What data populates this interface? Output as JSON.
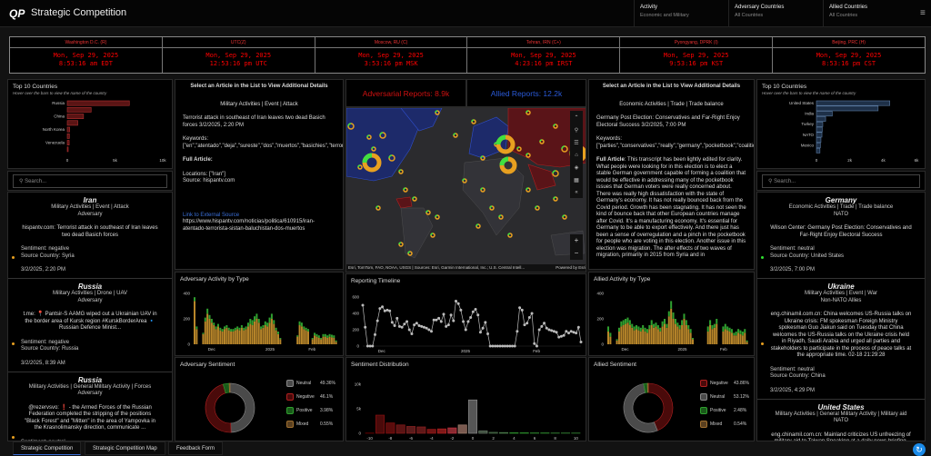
{
  "header": {
    "logo": "QP",
    "title": "Strategic Competition",
    "filters": [
      {
        "label": "Activity",
        "value": "Economic and Military"
      },
      {
        "label": "Adversary Countries",
        "value": "All Countries"
      },
      {
        "label": "Allied Countries",
        "value": "All Countries"
      }
    ],
    "menu_icon": "≡"
  },
  "clocks": [
    {
      "zone": "Washington D.C. (R)",
      "date": "Mon, Sep 29, 2025",
      "time": "8:53:16 am EDT"
    },
    {
      "zone": "UTC(Z)",
      "date": "Mon, Sep 29, 2025",
      "time": "12:53:16 pm UTC"
    },
    {
      "zone": "Moscow, RU (C)",
      "date": "Mon, Sep 29, 2025",
      "time": "3:53:16 pm MSK"
    },
    {
      "zone": "Tehran, IRN (C+)",
      "date": "Mon, Sep 29, 2025",
      "time": "4:23:16 pm IRST"
    },
    {
      "zone": "Pyongyang, DPRK (I)",
      "date": "Mon, Sep 29, 2025",
      "time": "9:53:16 pm KST"
    },
    {
      "zone": "Beijing, PRC (H)",
      "date": "Mon, Sep 29, 2025",
      "time": "8:53:16 pm CST"
    }
  ],
  "reports": {
    "adversarial": "Adversarial Reports: 8.9k",
    "allied": "Allied Reports: 12.2k"
  },
  "map": {
    "attribution": "Esri, TomTom, FAO, NOAA, USGS | Sources: Esri, Garmin International, Inc.; U.S. Central Intell...",
    "powered": "Powered by Esri",
    "zoom_in": "+",
    "zoom_out": "−"
  },
  "search_placeholder": "Search...",
  "colors": {
    "adversary": "#d01010",
    "allied": "#2050d0",
    "neutral": "#555555",
    "negative": "#6a0d0d",
    "positive": "#1a7a1a",
    "mixed": "#7a5a20",
    "bar_orange": "#b8862a",
    "bar_green": "#2fa02f"
  },
  "left_top10": {
    "title": "Top 10 Countries",
    "subtitle": "Hover over the bars to view the name of the country",
    "axis": [
      "0",
      "5k",
      "10k"
    ],
    "max": 10000,
    "bars": [
      {
        "label": "Russia",
        "value": 6500
      },
      {
        "label": "",
        "value": 2500
      },
      {
        "label": "China",
        "value": 1700
      },
      {
        "label": "",
        "value": 1100
      },
      {
        "label": "North Korea",
        "value": 250
      },
      {
        "label": "",
        "value": 220
      },
      {
        "label": "Venezuela",
        "value": 200
      },
      {
        "label": "",
        "value": 60
      }
    ]
  },
  "right_top10": {
    "title": "Top 10 Countries",
    "subtitle": "Hover over the bars to view the name of the country",
    "axis": [
      "0",
      "2k",
      "4k",
      "6k"
    ],
    "max": 6000,
    "bars": [
      {
        "label": "United States",
        "value": 4400
      },
      {
        "label": "",
        "value": 3700
      },
      {
        "label": "India",
        "value": 950
      },
      {
        "label": "",
        "value": 550
      },
      {
        "label": "Turkey",
        "value": 380
      },
      {
        "label": "",
        "value": 350
      },
      {
        "label": "NATO",
        "value": 330
      },
      {
        "label": "",
        "value": 270
      },
      {
        "label": "Mexico",
        "value": 240
      },
      {
        "label": "",
        "value": 210
      }
    ]
  },
  "left_list": [
    {
      "country": "Iran",
      "category": "Military Activities | Event | Attack",
      "group": "Adversary",
      "headline": "hispantv.com: Terrorist attack in southeast of Iran leaves two dead Basich forces",
      "sentiment": "Sentiment: negative",
      "source": "Source Country: Syria",
      "date": "3/2/2025, 2:20 PM",
      "dot": "#e8a020"
    },
    {
      "country": "Russia",
      "category": "Military Activities | Drone | UAV",
      "group": "Adversary",
      "headline": "t.me: 📍 Pantsir-S AAMG wiped out a Ukrainian UAV in the border area of Kursk region #KurskBorderArea 🔹 Russian Defence Minist...",
      "sentiment": "Sentiment: negative",
      "source": "Source Country: Russia",
      "date": "3/2/2025, 8:39 AM",
      "dot": "#e8a020"
    },
    {
      "country": "Russia",
      "category": "Military Activities | General Military Activity | Forces",
      "group": "Adversary",
      "headline": "@rezervsvo: ❗ - the Armed Forces of the Russian Federation completed the stripping of the positions \"Black Forest\" and \"Mitten\" in the area of Yampovka in the Krasnolimansky direction, communicate ...",
      "sentiment": "Sentiment: neutral",
      "source": "Source Country: Russia",
      "date": "",
      "dot": "#e8a020"
    }
  ],
  "right_list": [
    {
      "country": "Germany",
      "category": "Economic Activities | Trade | Trade balance",
      "group": "NATO",
      "headline": "Wilson Center: Germany Post Election: Conservatives and Far-Right Enjoy Electoral Success",
      "sentiment": "Sentiment: neutral",
      "source": "Source Country: United States",
      "date": "3/2/2025, 7:00 PM",
      "dot": "#30e030"
    },
    {
      "country": "Ukraine",
      "category": "Military Activities | Event | War",
      "group": "Non-NATO Allies",
      "headline": "eng.chinamil.com.cn: China welcomes US-Russia talks on Ukraine crisis: FM spokesman Foreign Ministry spokesman Guo Jiakun said on Tuesday that China welcomes the US-Russia talks on the Ukraine crisis held in Riyadh, Saudi Arabia and urged all parties and stakeholders to participate in the process of peace talks at the appropriate time. 02-18 21:29:28",
      "sentiment": "Sentiment: neutral",
      "source": "Source Country: China",
      "date": "3/2/2025, 4:29 PM",
      "dot": "#e8a020"
    },
    {
      "country": "United States",
      "category": "Military Activities | General Military Activity | Military aid",
      "group": "NATO",
      "headline": "eng.chinamil.com.cn: Mainland criticizes US unfreezing of military aid to Taiwan Speaking at a daily news briefing, Foreign Ministry spokesman Lin Jian said the US provision of...",
      "sentiment": "",
      "source": "",
      "date": "",
      "dot": "#e8a020"
    }
  ],
  "left_detail": {
    "heading": "Select an Article in the List to View Additional Details",
    "category": "Military Activities | Event | Attack",
    "title": "Terrorist attack in southeast of Iran leaves two dead Basich forces 3/2/2025, 2:20 PM",
    "keywords_label": "Keywords:",
    "keywords": "[\"en\",\"atentado\",\"deja\",\"sureste\",\"dos\",\"muertos\",\"basichies\",\"terrorista\",\"irán\"]",
    "full_label": "Full Article:",
    "full_text": "",
    "locations": "Locations: [\"Iran\"]",
    "source": "Source: hispantv.com",
    "link_label": "Link to External Source",
    "url": "https://www.hispantv.com/noticias/politica/610915/iran-atentado-terrorista-sistan-baluchistan-dos-muertos"
  },
  "right_detail": {
    "heading": "Select an Article in the List to View Additional Details",
    "category": "Economic Activities | Trade | Trade balance",
    "title": "Germany Post Election: Conservatives and Far-Right Enjoy Electoral Success 3/2/2025, 7:00 PM",
    "keywords_label": "Keywords:",
    "keywords": "[\"parties\",\"conservatives\",\"really\",\"germany\",\"pocketbook\",\"coalition\",\"success\",\"enjoy\",\"sense\",\"electoral\",\"party\",\"german\",\"election\",\"waves\",\"post\",\"schulz\",\"farright\"]",
    "full_label": "Full Article",
    "full_text": ": This transcript has been lightly edited for clarity. What people were looking for in this election is to elect a stable German government capable of forming a coalition that would be effective in addressing many of the pocketbook issues that German voters were really concerned about. There was really high dissatisfaction with the state of Germany's economy. It has not really bounced back from the Covid period. Growth has been stagnating. It has not seen the kind of bounce back that other European countries manage after Covid. It's a manufacturing economy. It's essential for Germany to be able to export effectively. And there just has been a sense of overregulation and a pinch in the pocketbook for people who are voting in this election. Another issue in this election was migration. The after effects of two waves of migration, primarily in 2015 from Syria and in"
  },
  "chart_data": [
    {
      "type": "bar",
      "id": "adv_activity",
      "title": "Adversary Activity by Type",
      "ylim": [
        0,
        400
      ],
      "yticks": [
        "0",
        "200",
        "400"
      ],
      "xticks": [
        "Dec",
        "2025",
        "Feb"
      ],
      "series": [
        {
          "name": "Military",
          "values": [
            340,
            120,
            0,
            0,
            80,
            180,
            240,
            200,
            170,
            150,
            120,
            140,
            110,
            100,
            120,
            130,
            110,
            100,
            100,
            110,
            120,
            110,
            130,
            110,
            120,
            140,
            160,
            150,
            180,
            200,
            170,
            120,
            130,
            150,
            140,
            170,
            200,
            160,
            110,
            80,
            40,
            0,
            0,
            0,
            0,
            0,
            0,
            0,
            60,
            150,
            140,
            120,
            110,
            100,
            0,
            40,
            70,
            60,
            50,
            40,
            60,
            60,
            50,
            60,
            55,
            50,
            20
          ]
        },
        {
          "name": "Economic",
          "values": [
            30,
            20,
            0,
            0,
            10,
            30,
            40,
            30,
            30,
            20,
            20,
            20,
            20,
            20,
            20,
            20,
            20,
            20,
            20,
            20,
            20,
            20,
            20,
            20,
            20,
            30,
            40,
            40,
            40,
            40,
            30,
            20,
            20,
            30,
            30,
            40,
            40,
            30,
            20,
            20,
            10,
            0,
            0,
            0,
            0,
            0,
            0,
            0,
            10,
            30,
            30,
            20,
            20,
            20,
            0,
            10,
            20,
            20,
            20,
            10,
            20,
            20,
            20,
            20,
            20,
            20,
            10
          ]
        }
      ]
    },
    {
      "type": "bar",
      "id": "all_activity",
      "title": "Allied Activity by Type",
      "ylim": [
        0,
        400
      ],
      "yticks": [
        "0",
        "200",
        "400"
      ],
      "xticks": [
        "Dec",
        "2025",
        "Feb"
      ],
      "series": [
        {
          "name": "Military",
          "values": [
            100,
            60,
            0,
            0,
            30,
            100,
            140,
            150,
            160,
            170,
            150,
            130,
            110,
            120,
            110,
            100,
            120,
            100,
            90,
            120,
            150,
            130,
            140,
            120,
            100,
            140,
            160,
            130,
            220,
            280,
            200,
            160,
            140,
            120,
            150,
            200,
            150,
            120,
            90,
            40,
            0,
            0,
            0,
            0,
            0,
            0,
            100,
            150,
            120,
            130,
            160,
            0,
            0,
            100,
            120,
            110,
            100,
            90,
            70,
            70,
            90,
            80,
            70,
            90,
            20
          ]
        },
        {
          "name": "Economic",
          "values": [
            40,
            30,
            0,
            0,
            10,
            30,
            40,
            40,
            40,
            40,
            40,
            30,
            30,
            30,
            30,
            30,
            30,
            30,
            30,
            30,
            40,
            30,
            30,
            30,
            30,
            40,
            40,
            30,
            40,
            60,
            50,
            40,
            30,
            30,
            40,
            40,
            40,
            30,
            30,
            10,
            0,
            0,
            0,
            0,
            0,
            0,
            40,
            40,
            30,
            30,
            40,
            0,
            0,
            40,
            40,
            30,
            30,
            30,
            20,
            30,
            30,
            30,
            30,
            30,
            10
          ]
        }
      ]
    },
    {
      "type": "line",
      "id": "timeline",
      "title": "Reporting Timeline",
      "ylim": [
        0,
        600
      ],
      "yticks": [
        "0",
        "200",
        "400",
        "600"
      ],
      "xticks": [
        "Dec",
        "2025",
        "Feb"
      ],
      "values": [
        500,
        230,
        0,
        0,
        0,
        140,
        310,
        460,
        480,
        430,
        440,
        430,
        290,
        250,
        340,
        240,
        230,
        270,
        300,
        200,
        150,
        260,
        280,
        250,
        240,
        230,
        220,
        200,
        180,
        320,
        320,
        340,
        300,
        390,
        240,
        260,
        380,
        310,
        550,
        520,
        440,
        300,
        200,
        300,
        350,
        420,
        450,
        380,
        170,
        220,
        290,
        150,
        0,
        0,
        0,
        0,
        0,
        0,
        0,
        0,
        0,
        0,
        0,
        180,
        470,
        440,
        260,
        280,
        350,
        400,
        30,
        0,
        200,
        240,
        280,
        220,
        200,
        190,
        180,
        170,
        110,
        120,
        130,
        180,
        160,
        180,
        170,
        160,
        230,
        50
      ]
    },
    {
      "type": "bar",
      "id": "sent_dist",
      "title": "Sentiment Distribution",
      "ylim": [
        0,
        10000
      ],
      "yticks": [
        "0",
        "5k",
        "10k"
      ],
      "categories": [
        -10,
        -9,
        -8,
        -7,
        -6,
        -5,
        -4,
        -3,
        -2,
        -1,
        0,
        1,
        2,
        3,
        4,
        5,
        6,
        7,
        8,
        9,
        10
      ],
      "xticks": [
        "-10",
        "-8",
        "-6",
        "-4",
        "-2",
        "0",
        "2",
        "4",
        "6",
        "8",
        "10"
      ],
      "values": [
        60,
        3700,
        2100,
        1700,
        1400,
        1300,
        800,
        900,
        1100,
        1700,
        6800,
        500,
        200,
        150,
        120,
        110,
        100,
        100,
        90,
        90,
        80
      ]
    },
    {
      "type": "pie",
      "id": "adv_sent",
      "title": "Adversary Sentiment",
      "slices": [
        {
          "label": "Neutral",
          "value": 49.36,
          "text": "49.36%"
        },
        {
          "label": "Negative",
          "value": 46.1,
          "text": "46.1%"
        },
        {
          "label": "Positive",
          "value": 3.98,
          "text": "3.98%"
        },
        {
          "label": "Mixed",
          "value": 0.55,
          "text": "0.55%"
        }
      ]
    },
    {
      "type": "pie",
      "id": "all_sent",
      "title": "Allied Sentiment",
      "slices": [
        {
          "label": "Negative",
          "value": 43.86,
          "text": "43.86%"
        },
        {
          "label": "Neutral",
          "value": 53.12,
          "text": "53.12%"
        },
        {
          "label": "Positive",
          "value": 2.48,
          "text": "2.48%"
        },
        {
          "label": "Mixed",
          "value": 0.54,
          "text": "0.54%"
        }
      ]
    }
  ],
  "tabs": [
    "Strategic Competition",
    "Strategic Competition Map",
    "Feedback Form"
  ]
}
